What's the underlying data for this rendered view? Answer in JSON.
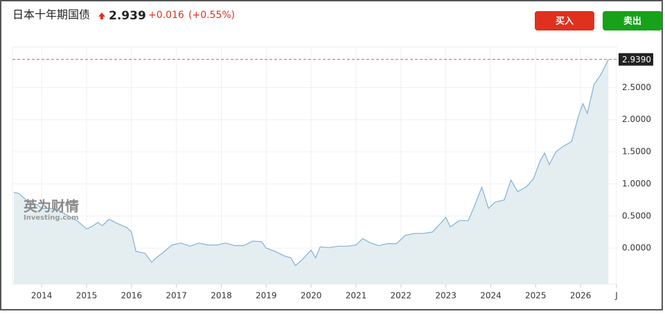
{
  "header": {
    "title": "日本十年期国债",
    "price": "2.939",
    "change": "+0.016",
    "change_pct": "(+0.55%)",
    "buy": "买入",
    "sell": "卖出"
  },
  "watermark": {
    "cn": "英为财情",
    "en": "Investing.com"
  },
  "chart_data": {
    "type": "area",
    "color": "#7fb2d8",
    "fill": "#e4edf0",
    "grid": true,
    "x": [
      2013.38,
      2013.5,
      2013.7,
      2013.9,
      2014.0,
      2014.2,
      2014.4,
      2014.6,
      2014.8,
      2015.0,
      2015.1,
      2015.25,
      2015.35,
      2015.5,
      2015.7,
      2015.9,
      2016.0,
      2016.1,
      2016.3,
      2016.45,
      2016.55,
      2016.7,
      2016.9,
      2017.1,
      2017.3,
      2017.5,
      2017.7,
      2017.9,
      2018.1,
      2018.3,
      2018.5,
      2018.7,
      2018.9,
      2019.0,
      2019.2,
      2019.4,
      2019.55,
      2019.65,
      2019.8,
      2020.0,
      2020.1,
      2020.2,
      2020.4,
      2020.6,
      2020.8,
      2021.0,
      2021.15,
      2021.3,
      2021.5,
      2021.7,
      2021.9,
      2022.1,
      2022.3,
      2022.5,
      2022.7,
      2022.9,
      2023.0,
      2023.1,
      2023.3,
      2023.5,
      2023.65,
      2023.8,
      2023.95,
      2024.1,
      2024.3,
      2024.45,
      2024.6,
      2024.8,
      2024.95,
      2025.1,
      2025.2,
      2025.3,
      2025.45,
      2025.6,
      2025.8,
      2025.95,
      2026.05,
      2026.15,
      2026.3,
      2026.45,
      2026.62
    ],
    "values": [
      0.87,
      0.85,
      0.72,
      0.68,
      0.62,
      0.62,
      0.58,
      0.5,
      0.42,
      0.3,
      0.33,
      0.4,
      0.35,
      0.45,
      0.38,
      0.32,
      0.25,
      -0.05,
      -0.08,
      -0.22,
      -0.15,
      -0.07,
      0.05,
      0.08,
      0.03,
      0.08,
      0.05,
      0.05,
      0.08,
      0.04,
      0.04,
      0.11,
      0.1,
      0.0,
      -0.05,
      -0.12,
      -0.15,
      -0.27,
      -0.18,
      -0.03,
      -0.15,
      0.02,
      0.01,
      0.03,
      0.03,
      0.05,
      0.15,
      0.09,
      0.04,
      0.07,
      0.07,
      0.2,
      0.23,
      0.23,
      0.25,
      0.4,
      0.48,
      0.33,
      0.43,
      0.43,
      0.68,
      0.95,
      0.62,
      0.72,
      0.75,
      1.06,
      0.88,
      0.96,
      1.08,
      1.36,
      1.48,
      1.3,
      1.5,
      1.58,
      1.66,
      2.05,
      2.25,
      2.1,
      2.55,
      2.7,
      2.939
    ],
    "last_label": {
      "value": 2.939,
      "label": "2.9390"
    },
    "xlim": [
      2013.35,
      2026.8
    ],
    "ylim": [
      -0.56,
      3.13
    ],
    "xticks": [
      2014,
      2015,
      2016,
      2017,
      2018,
      2019,
      2020,
      2021,
      2022,
      2023,
      2024,
      2025,
      2026,
      {
        "value": 2026.8,
        "label": "J"
      }
    ],
    "yticks": [
      {
        "value": 0,
        "label": "0.0000"
      },
      {
        "value": 0.5,
        "label": "0.5000"
      },
      {
        "value": 1,
        "label": "1.0000"
      },
      {
        "value": 1.5,
        "label": "1.5000"
      },
      {
        "value": 2,
        "label": "2.0000"
      },
      {
        "value": 2.5,
        "label": "2.5000"
      }
    ]
  }
}
